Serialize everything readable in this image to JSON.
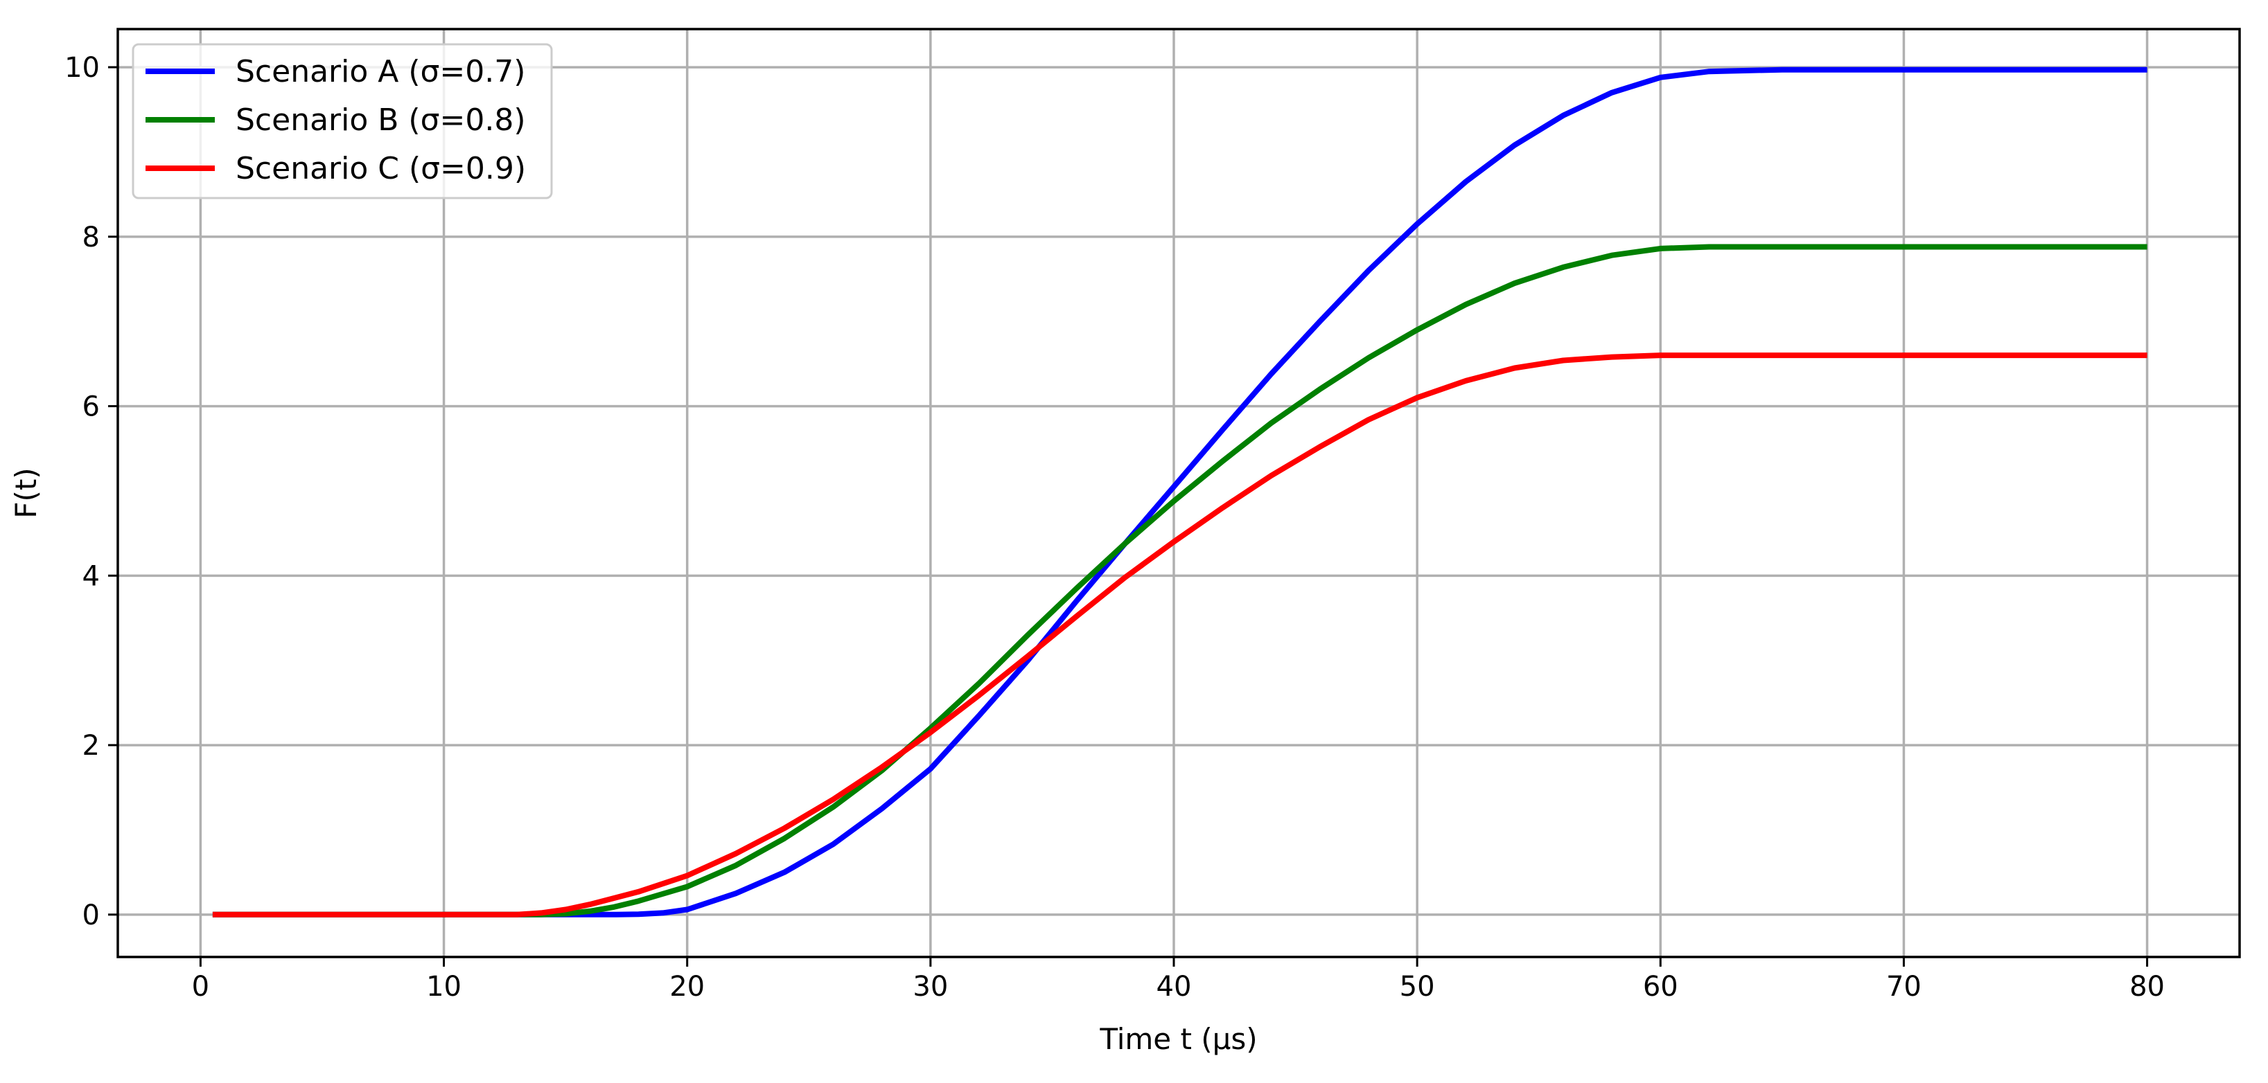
{
  "chart_data": {
    "type": "line",
    "title": "",
    "xlabel": "Time t (μs)",
    "ylabel": "F(t)",
    "xlim": [
      -3.4,
      83.8
    ],
    "ylim": [
      -0.5,
      10.45
    ],
    "xticks": [
      0,
      10,
      20,
      30,
      40,
      50,
      60,
      70,
      80
    ],
    "yticks": [
      0,
      2,
      4,
      6,
      8,
      10
    ],
    "grid": true,
    "legend_position": "top-left",
    "series": [
      {
        "name": "Scenario A (σ=0.7)",
        "color": "#0000ff",
        "points": [
          [
            0.5,
            0
          ],
          [
            17,
            0
          ],
          [
            18,
            0.004
          ],
          [
            19,
            0.02
          ],
          [
            20,
            0.06
          ],
          [
            22,
            0.25
          ],
          [
            24,
            0.5
          ],
          [
            26,
            0.83
          ],
          [
            28,
            1.25
          ],
          [
            30,
            1.72
          ],
          [
            32,
            2.35
          ],
          [
            34,
            3.0
          ],
          [
            36,
            3.7
          ],
          [
            38,
            4.38
          ],
          [
            40,
            5.05
          ],
          [
            42,
            5.72
          ],
          [
            44,
            6.38
          ],
          [
            46,
            7.0
          ],
          [
            48,
            7.6
          ],
          [
            50,
            8.15
          ],
          [
            52,
            8.65
          ],
          [
            54,
            9.08
          ],
          [
            56,
            9.43
          ],
          [
            58,
            9.7
          ],
          [
            60,
            9.88
          ],
          [
            62,
            9.95
          ],
          [
            65,
            9.97
          ],
          [
            80,
            9.97
          ]
        ]
      },
      {
        "name": "Scenario B (σ=0.8)",
        "color": "#008000",
        "points": [
          [
            0.5,
            0
          ],
          [
            14,
            0
          ],
          [
            15,
            0.01
          ],
          [
            16,
            0.04
          ],
          [
            17,
            0.09
          ],
          [
            18,
            0.16
          ],
          [
            20,
            0.33
          ],
          [
            22,
            0.58
          ],
          [
            24,
            0.9
          ],
          [
            26,
            1.27
          ],
          [
            28,
            1.7
          ],
          [
            30,
            2.2
          ],
          [
            32,
            2.73
          ],
          [
            34,
            3.3
          ],
          [
            36,
            3.85
          ],
          [
            38,
            4.38
          ],
          [
            40,
            4.88
          ],
          [
            42,
            5.35
          ],
          [
            44,
            5.8
          ],
          [
            46,
            6.2
          ],
          [
            48,
            6.57
          ],
          [
            50,
            6.9
          ],
          [
            52,
            7.2
          ],
          [
            54,
            7.45
          ],
          [
            56,
            7.64
          ],
          [
            58,
            7.78
          ],
          [
            60,
            7.86
          ],
          [
            62,
            7.88
          ],
          [
            80,
            7.88
          ]
        ]
      },
      {
        "name": "Scenario C (σ=0.9)",
        "color": "#ff0000",
        "points": [
          [
            0.5,
            0
          ],
          [
            13,
            0
          ],
          [
            14,
            0.02
          ],
          [
            15,
            0.06
          ],
          [
            16,
            0.12
          ],
          [
            18,
            0.27
          ],
          [
            20,
            0.46
          ],
          [
            22,
            0.72
          ],
          [
            24,
            1.02
          ],
          [
            26,
            1.36
          ],
          [
            28,
            1.74
          ],
          [
            30,
            2.15
          ],
          [
            32,
            2.59
          ],
          [
            34,
            3.05
          ],
          [
            36,
            3.52
          ],
          [
            38,
            3.98
          ],
          [
            40,
            4.4
          ],
          [
            42,
            4.8
          ],
          [
            44,
            5.18
          ],
          [
            46,
            5.52
          ],
          [
            48,
            5.84
          ],
          [
            50,
            6.1
          ],
          [
            52,
            6.3
          ],
          [
            54,
            6.45
          ],
          [
            56,
            6.54
          ],
          [
            58,
            6.58
          ],
          [
            60,
            6.6
          ],
          [
            80,
            6.6
          ]
        ]
      }
    ]
  }
}
